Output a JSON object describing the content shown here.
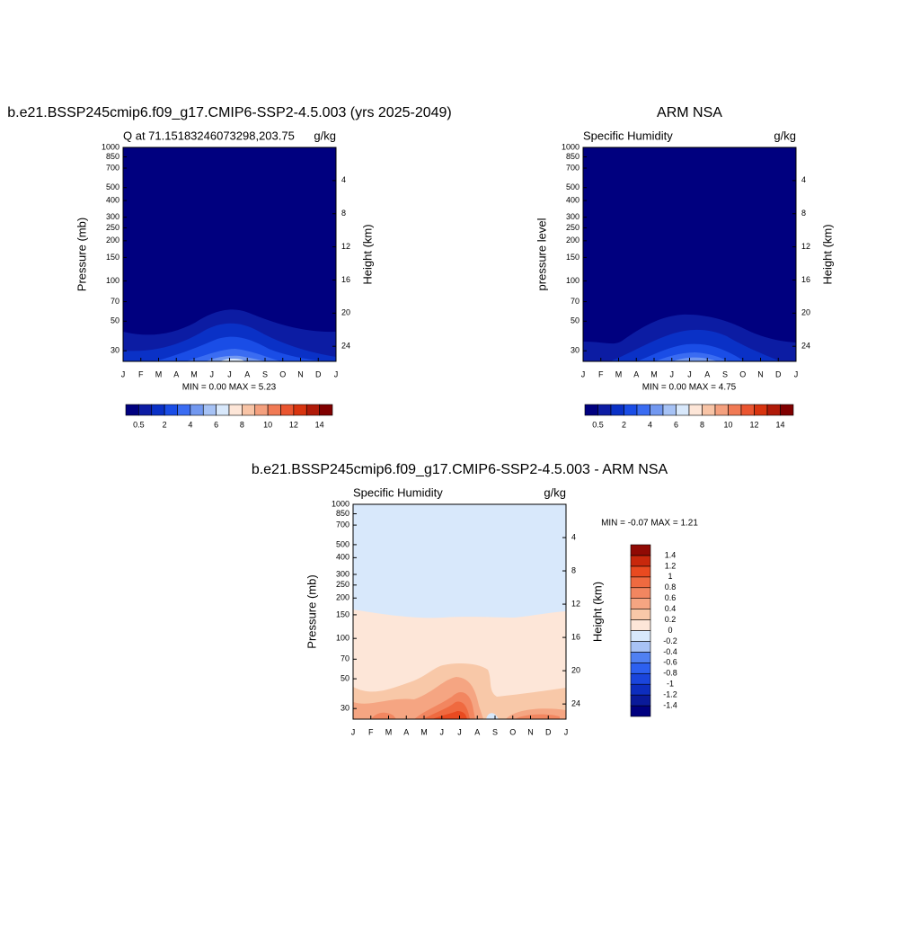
{
  "chart_data": [
    {
      "type": "contour",
      "title": "b.e21.BSSP245cmip6.f09_g17.CMIP6-SSP2-4.5.003 (yrs 2025-2049)",
      "subtitle_left": "Q at 71.15183246073298,203.75",
      "subtitle_right": "g/kg",
      "ylabel": "Pressure (mb)",
      "y2label": "Height (km)",
      "categories": [
        "J",
        "F",
        "M",
        "A",
        "M",
        "J",
        "J",
        "A",
        "S",
        "O",
        "N",
        "D",
        "J"
      ],
      "log_scale": true,
      "ylim": [
        1000,
        25
      ],
      "yticks": [
        30,
        50,
        70,
        100,
        150,
        200,
        250,
        300,
        400,
        500,
        700,
        850,
        1000
      ],
      "y2ticks": [
        4,
        8,
        12,
        16,
        20,
        24
      ],
      "annotation": "MIN =   0.00 MAX =   5.23",
      "colorbar": {
        "colors": [
          "#00007f",
          "#0c1ca3",
          "#0a31c6",
          "#1a4de6",
          "#3a6cf2",
          "#7298f0",
          "#a6c2f5",
          "#d8e8fb",
          "#fde6d8",
          "#f8c4a6",
          "#f4a07e",
          "#f07a55",
          "#ea5530",
          "#d8340f",
          "#b01a08",
          "#800000"
        ],
        "labels": [
          0.5,
          2,
          4,
          6,
          8,
          10,
          12,
          14
        ]
      }
    },
    {
      "type": "contour",
      "title": "ARM NSA",
      "subtitle_left": "Specific Humidity",
      "subtitle_right": "g/kg",
      "ylabel": "pressure level",
      "y2label": "Height (km)",
      "categories": [
        "J",
        "F",
        "M",
        "A",
        "M",
        "J",
        "J",
        "A",
        "S",
        "O",
        "N",
        "D",
        "J"
      ],
      "log_scale": true,
      "ylim": [
        1000,
        25
      ],
      "yticks": [
        30,
        50,
        70,
        100,
        150,
        200,
        250,
        300,
        400,
        500,
        700,
        850,
        1000
      ],
      "y2ticks": [
        4,
        8,
        12,
        16,
        20,
        24
      ],
      "annotation": "MIN =   0.00 MAX =   4.75",
      "colorbar": {
        "colors": [
          "#00007f",
          "#0c1ca3",
          "#0a31c6",
          "#1a4de6",
          "#3a6cf2",
          "#7298f0",
          "#a6c2f5",
          "#d8e8fb",
          "#fde6d8",
          "#f8c4a6",
          "#f4a07e",
          "#f07a55",
          "#ea5530",
          "#d8340f",
          "#b01a08",
          "#800000"
        ],
        "labels": [
          0.5,
          2,
          4,
          6,
          8,
          10,
          12,
          14
        ]
      }
    },
    {
      "type": "contour",
      "title": "b.e21.BSSP245cmip6.f09_g17.CMIP6-SSP2-4.5.003 - ARM NSA",
      "subtitle_left": "Specific Humidity",
      "subtitle_right": "g/kg",
      "ylabel": "Pressure (mb)",
      "y2label": "Height (km)",
      "categories": [
        "J",
        "F",
        "M",
        "A",
        "M",
        "J",
        "J",
        "A",
        "S",
        "O",
        "N",
        "D",
        "J"
      ],
      "log_scale": true,
      "ylim": [
        1000,
        25
      ],
      "yticks": [
        30,
        50,
        70,
        100,
        150,
        200,
        250,
        300,
        400,
        500,
        700,
        850,
        1000
      ],
      "y2ticks": [
        4,
        8,
        12,
        16,
        20,
        24
      ],
      "annotation": "MIN =  -0.07 MAX =   1.21",
      "colorbar": {
        "colors": [
          "#00007f",
          "#0a1a9a",
          "#0d2dbe",
          "#1a45dc",
          "#2d60f0",
          "#5080f2",
          "#a8c2f5",
          "#d8e8fb",
          "#fde6d8",
          "#f8c8a8",
          "#f5a582",
          "#f28660",
          "#ef6a40",
          "#e94a20",
          "#c8280c",
          "#900a04"
        ],
        "labels": [
          -1.4,
          -1.2,
          -1,
          -0.8,
          -0.6,
          -0.4,
          -0.2,
          0,
          0.2,
          0.4,
          0.6,
          0.8,
          1,
          1.2,
          1.4
        ]
      }
    }
  ]
}
